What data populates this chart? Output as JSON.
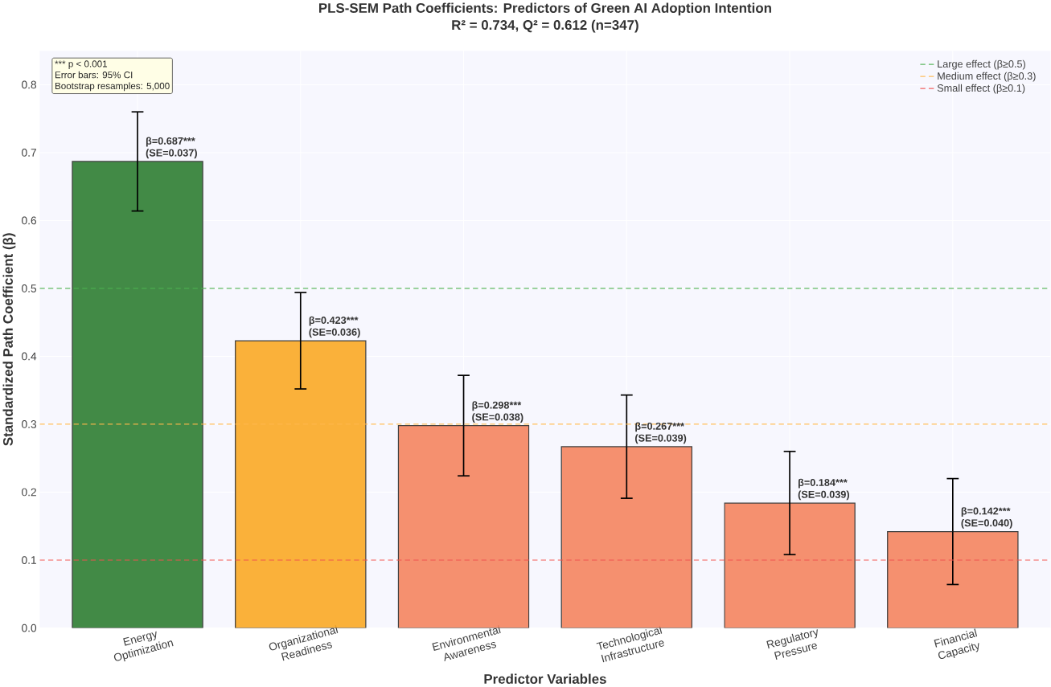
{
  "chart_data": {
    "type": "bar",
    "title": "PLS-SEM Path Coefficients: Predictors of Green AI Adoption Intention",
    "subtitle": "R² = 0.734, Q² = 0.612 (n=347)",
    "xlabel": "Predictor Variables",
    "ylabel": "Standardized Path Coefficient (β)",
    "categories": [
      "Energy Optimization",
      "Organizational Readiness",
      "Environmental Awareness",
      "Technological Infrastructure",
      "Regulatory Pressure",
      "Financial Capacity"
    ],
    "values": [
      0.687,
      0.423,
      0.298,
      0.267,
      0.184,
      0.142
    ],
    "colors": [
      "#2e7d32",
      "#f9a825",
      "#f4845f",
      "#f4845f",
      "#f4845f",
      "#f4845f"
    ],
    "errors": [
      0.073,
      0.071,
      0.074,
      0.076,
      0.076,
      0.078
    ],
    "value_labels": [
      "β=0.687*** (SE=0.037)",
      "β=0.423*** (SE=0.036)",
      "β=0.298*** (SE=0.038)",
      "β=0.267*** (SE=0.039)",
      "β=0.184*** (SE=0.039)",
      "β=0.142*** (SE=0.040)"
    ],
    "ylim": [
      0,
      0.85
    ],
    "yticks": [
      {
        "value": 0,
        "label": "0.0"
      },
      0.1,
      0.2,
      0.3,
      0.4,
      0.5,
      0.6,
      0.7,
      0.8
    ],
    "ref_lines": [
      {
        "axis": "y",
        "value": 0.5,
        "label": "Large effect (β≥0.5)",
        "color": "#4caf50",
        "line_style": "dashed"
      },
      {
        "axis": "y",
        "value": 0.3,
        "label": "Medium effect (β≥0.3)",
        "color": "#ffb74d",
        "line_style": "dashed"
      },
      {
        "axis": "y",
        "value": 0.1,
        "label": "Small effect (β≥0.1)",
        "color": "#ef5350",
        "line_style": "dashed"
      }
    ],
    "annotations": [
      "*** p < 0.001",
      "Error bars: 95% CI",
      "Bootstrap resamples: 5,000"
    ],
    "grid": true,
    "legend": "top right"
  }
}
